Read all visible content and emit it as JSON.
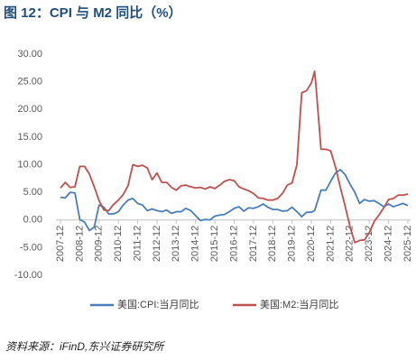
{
  "chart_data": {
    "type": "line",
    "title": "图 12：CPI 与 M2 同比（%）",
    "source": "资料来源：iFinD,东兴证券研究所",
    "x": [
      "2007-12",
      "2008-03",
      "2008-06",
      "2008-09",
      "2008-12",
      "2009-03",
      "2009-06",
      "2009-09",
      "2009-12",
      "2010-03",
      "2010-06",
      "2010-09",
      "2010-12",
      "2011-03",
      "2011-06",
      "2011-09",
      "2011-12",
      "2012-03",
      "2012-06",
      "2012-09",
      "2012-12",
      "2013-03",
      "2013-06",
      "2013-09",
      "2013-12",
      "2014-03",
      "2014-06",
      "2014-09",
      "2014-12",
      "2015-03",
      "2015-06",
      "2015-09",
      "2015-12",
      "2016-03",
      "2016-06",
      "2016-09",
      "2016-12",
      "2017-03",
      "2017-06",
      "2017-09",
      "2017-12",
      "2018-03",
      "2018-06",
      "2018-09",
      "2018-12",
      "2019-03",
      "2019-06",
      "2019-09",
      "2019-12",
      "2020-03",
      "2020-06",
      "2020-09",
      "2020-12",
      "2021-02",
      "2021-03",
      "2021-06",
      "2021-09",
      "2021-12",
      "2022-03",
      "2022-06",
      "2022-09",
      "2022-12",
      "2023-03",
      "2023-06",
      "2023-09",
      "2023-12",
      "2024-03",
      "2024-06",
      "2024-09",
      "2024-12",
      "2025-03",
      "2025-06",
      "2025-09",
      "2025-12"
    ],
    "series": [
      {
        "name": "美国:CPI:当月同比",
        "color": "#4a7ebb",
        "values": [
          4.1,
          4.0,
          5.0,
          4.9,
          0.1,
          -0.4,
          -1.9,
          -1.3,
          2.7,
          2.3,
          1.1,
          1.1,
          1.5,
          2.7,
          3.6,
          3.9,
          3.0,
          2.7,
          1.7,
          2.0,
          1.7,
          1.5,
          1.8,
          1.2,
          1.5,
          1.5,
          2.1,
          1.7,
          0.8,
          -0.1,
          0.1,
          0.0,
          0.7,
          0.9,
          1.0,
          1.5,
          2.1,
          2.4,
          1.6,
          2.2,
          2.1,
          2.4,
          2.9,
          2.3,
          1.9,
          1.9,
          1.6,
          1.7,
          2.3,
          1.5,
          0.6,
          1.4,
          1.4,
          1.7,
          2.6,
          5.4,
          5.4,
          7.0,
          8.5,
          9.1,
          8.2,
          6.5,
          5.0,
          3.0,
          3.7,
          3.4,
          3.5,
          3.0,
          2.4,
          2.9,
          2.4,
          2.7,
          3.0,
          2.6
        ]
      },
      {
        "name": "美国:M2:当月同比",
        "color": "#c0504d",
        "values": [
          5.8,
          6.8,
          5.9,
          6.0,
          9.7,
          9.7,
          8.3,
          6.0,
          3.5,
          1.8,
          1.7,
          2.8,
          3.6,
          4.6,
          6.2,
          10.0,
          9.7,
          9.9,
          9.4,
          7.3,
          8.5,
          6.8,
          6.8,
          5.9,
          5.4,
          6.2,
          6.3,
          6.0,
          5.8,
          5.9,
          5.6,
          6.0,
          5.7,
          6.3,
          7.0,
          7.3,
          7.1,
          6.0,
          5.6,
          5.3,
          4.8,
          4.0,
          3.9,
          3.6,
          3.6,
          3.9,
          4.8,
          6.3,
          6.7,
          10.0,
          23.0,
          23.4,
          24.8,
          26.9,
          23.8,
          12.8,
          12.8,
          12.5,
          9.6,
          5.9,
          2.5,
          -1.2,
          -4.1,
          -3.7,
          -3.6,
          -2.3,
          -0.3,
          0.9,
          2.2,
          3.7,
          3.9,
          4.5,
          4.5,
          4.7
        ]
      }
    ],
    "xticks": [
      "2007-12",
      "2008-12",
      "2009-12",
      "2010-12",
      "2011-12",
      "2012-12",
      "2013-12",
      "2014-12",
      "2015-12",
      "2016-12",
      "2017-12",
      "2018-12",
      "2019-12",
      "2020-12",
      "2021-12",
      "2022-12",
      "2023-12",
      "2024-12",
      "2025-12"
    ],
    "ylim": [
      -10,
      30
    ],
    "yticks": [
      {
        "value": -10,
        "label": "-10.00"
      },
      {
        "value": -5,
        "label": "-5.00"
      },
      {
        "value": 0,
        "label": "0.00"
      },
      {
        "value": 5,
        "label": "5.00"
      },
      {
        "value": 10,
        "label": "10.00"
      },
      {
        "value": 15,
        "label": "15.00"
      },
      {
        "value": 20,
        "label": "20.00"
      },
      {
        "value": 25,
        "label": "25.00"
      },
      {
        "value": 30,
        "label": "30.00"
      }
    ],
    "grid": false,
    "legend": "bottom"
  }
}
